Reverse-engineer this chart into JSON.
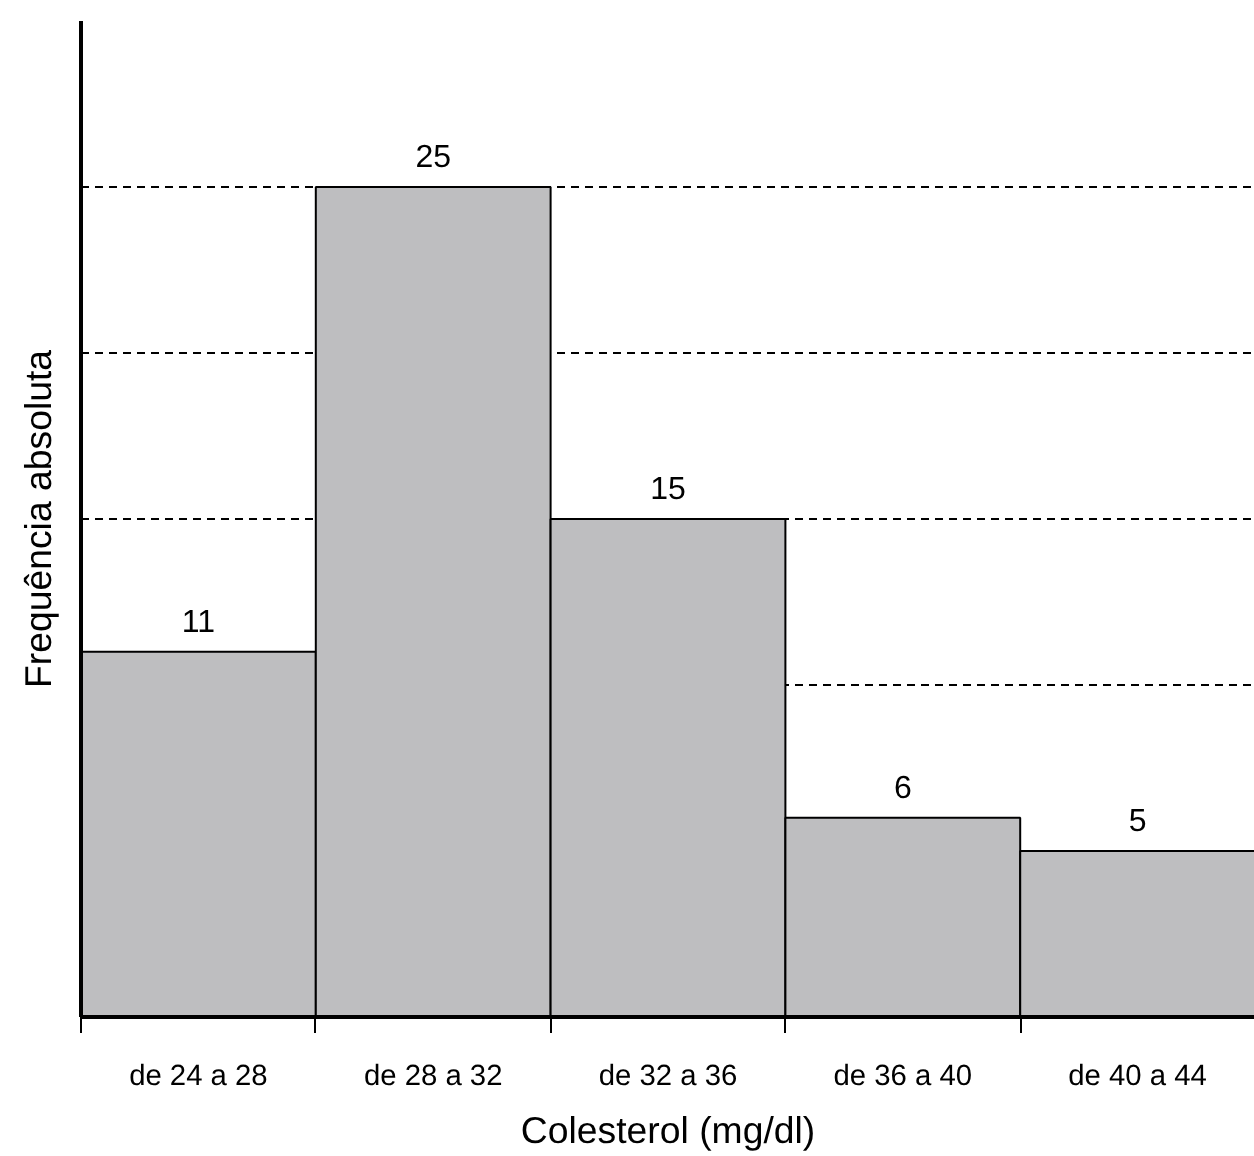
{
  "chart_data": {
    "type": "bar",
    "xlabel": "Colesterol (mg/dl)",
    "ylabel": "Frequência absoluta",
    "categories": [
      "de 24 a 28",
      "de 28 a 32",
      "de 32 a 36",
      "de 36 a 40",
      "de 40 a 44"
    ],
    "values": [
      11,
      25,
      15,
      6,
      5
    ],
    "color": "#bebec0",
    "data_labels": true,
    "ylim": [
      0,
      30
    ],
    "yticks": [
      {
        "value": 5,
        "label": null
      },
      {
        "value": 10,
        "label": null
      },
      {
        "value": 15,
        "label": null
      },
      {
        "value": 20,
        "label": null
      },
      {
        "value": 25,
        "label": null
      }
    ],
    "grid": "y",
    "line_style": "dashed",
    "tick_labels": "x"
  }
}
